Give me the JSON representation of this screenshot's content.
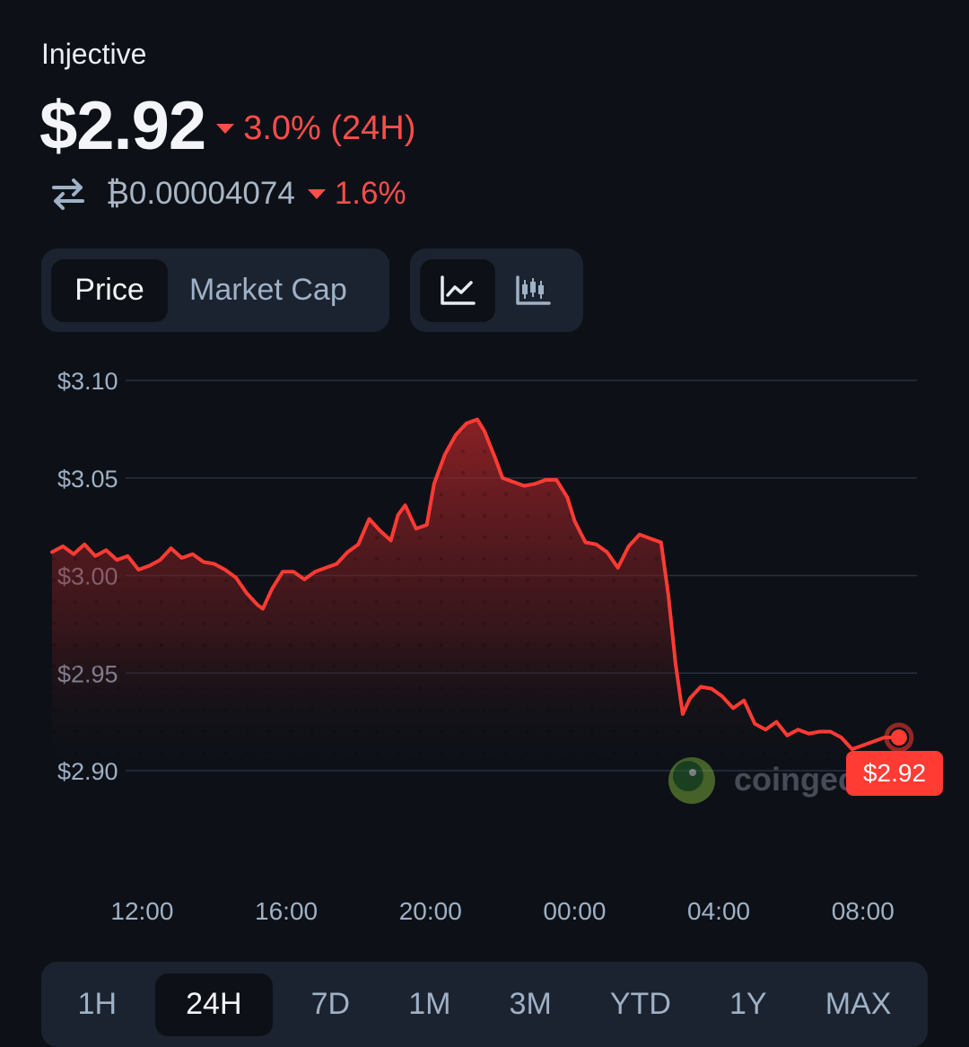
{
  "coin": {
    "name": "Injective",
    "price": "$2.92",
    "change_24h": "3.0% (24H)",
    "direction": "down"
  },
  "btc": {
    "price": "₿0.00004074",
    "change": "1.6%"
  },
  "metric_toggle": {
    "options": [
      "Price",
      "Market Cap"
    ],
    "selected": "Price"
  },
  "chart_type_toggle": {
    "options": [
      "line-chart-icon",
      "candlestick-chart-icon"
    ],
    "selected": "line-chart-icon"
  },
  "watermark": "coingecko",
  "range_buttons": {
    "options": [
      "1H",
      "24H",
      "7D",
      "1M",
      "3M",
      "YTD",
      "1Y",
      "MAX"
    ],
    "selected": "24H"
  },
  "colors": {
    "accent_red": "#ff4d4a",
    "background": "#0d1117",
    "panel": "#1c2330",
    "muted_text": "#9fb1c6"
  },
  "chart_data": {
    "type": "area",
    "title": "",
    "xlabel": "",
    "ylabel": "",
    "ylim": [
      2.9,
      3.1
    ],
    "yticks": [
      3.1,
      3.05,
      3.0,
      2.95,
      2.9
    ],
    "ytick_labels": [
      "$3.10",
      "$3.05",
      "$3.00",
      "$2.95",
      "$2.90"
    ],
    "xticks": [
      12,
      16,
      20,
      24,
      28,
      32
    ],
    "xtick_labels": [
      "12:00",
      "16:00",
      "20:00",
      "00:00",
      "04:00",
      "08:00"
    ],
    "xlim": [
      9.5,
      33.5
    ],
    "grid": true,
    "last_price_label": "$2.92",
    "series": [
      {
        "values": [
          [
            9.5,
            3.012
          ],
          [
            9.8,
            3.015
          ],
          [
            10.1,
            3.011
          ],
          [
            10.4,
            3.016
          ],
          [
            10.7,
            3.01
          ],
          [
            11.0,
            3.013
          ],
          [
            11.3,
            3.008
          ],
          [
            11.6,
            3.01
          ],
          [
            11.9,
            3.003
          ],
          [
            12.2,
            3.005
          ],
          [
            12.5,
            3.008
          ],
          [
            12.8,
            3.014
          ],
          [
            13.1,
            3.009
          ],
          [
            13.4,
            3.011
          ],
          [
            13.7,
            3.007
          ],
          [
            14.0,
            3.006
          ],
          [
            14.3,
            3.003
          ],
          [
            14.6,
            2.999
          ],
          [
            14.9,
            2.991
          ],
          [
            15.2,
            2.985
          ],
          [
            15.35,
            2.983
          ],
          [
            15.6,
            2.993
          ],
          [
            15.9,
            3.002
          ],
          [
            16.2,
            3.002
          ],
          [
            16.5,
            2.998
          ],
          [
            16.8,
            3.002
          ],
          [
            17.1,
            3.004
          ],
          [
            17.4,
            3.006
          ],
          [
            17.7,
            3.012
          ],
          [
            18.0,
            3.016
          ],
          [
            18.3,
            3.029
          ],
          [
            18.6,
            3.023
          ],
          [
            18.9,
            3.018
          ],
          [
            19.1,
            3.031
          ],
          [
            19.3,
            3.036
          ],
          [
            19.6,
            3.024
          ],
          [
            19.9,
            3.026
          ],
          [
            20.1,
            3.047
          ],
          [
            20.4,
            3.062
          ],
          [
            20.7,
            3.072
          ],
          [
            21.0,
            3.078
          ],
          [
            21.3,
            3.08
          ],
          [
            21.5,
            3.074
          ],
          [
            21.8,
            3.06
          ],
          [
            22.0,
            3.05
          ],
          [
            22.3,
            3.048
          ],
          [
            22.6,
            3.046
          ],
          [
            22.9,
            3.047
          ],
          [
            23.2,
            3.049
          ],
          [
            23.5,
            3.049
          ],
          [
            23.8,
            3.04
          ],
          [
            24.0,
            3.028
          ],
          [
            24.3,
            3.017
          ],
          [
            24.6,
            3.016
          ],
          [
            24.9,
            3.012
          ],
          [
            25.2,
            3.004
          ],
          [
            25.5,
            3.015
          ],
          [
            25.8,
            3.021
          ],
          [
            26.1,
            3.019
          ],
          [
            26.4,
            3.017
          ],
          [
            26.6,
            2.99
          ],
          [
            26.8,
            2.955
          ],
          [
            27.0,
            2.929
          ],
          [
            27.2,
            2.937
          ],
          [
            27.5,
            2.943
          ],
          [
            27.8,
            2.942
          ],
          [
            28.1,
            2.938
          ],
          [
            28.4,
            2.932
          ],
          [
            28.7,
            2.936
          ],
          [
            29.0,
            2.924
          ],
          [
            29.3,
            2.921
          ],
          [
            29.6,
            2.925
          ],
          [
            29.9,
            2.918
          ],
          [
            30.2,
            2.921
          ],
          [
            30.5,
            2.919
          ],
          [
            30.8,
            2.92
          ],
          [
            31.1,
            2.92
          ],
          [
            31.4,
            2.917
          ],
          [
            31.7,
            2.911
          ],
          [
            32.0,
            2.913
          ],
          [
            32.3,
            2.915
          ],
          [
            32.6,
            2.917
          ],
          [
            32.9,
            2.917
          ],
          [
            33.0,
            2.917
          ]
        ]
      }
    ]
  }
}
